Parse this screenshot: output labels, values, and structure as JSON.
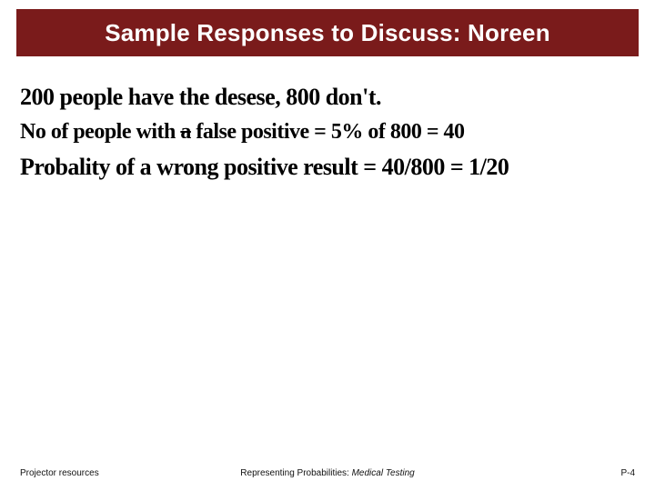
{
  "colors": {
    "titleBarBg": "#7a1b1b",
    "titleText": "#ffffff",
    "bodyBg": "#ffffff",
    "handwriting": "#000000",
    "footerText": "#111111"
  },
  "title": "Sample Responses to Discuss: Noreen",
  "handwriting": {
    "line1_a": "200 people",
    "line1_b": " have the desese, 800 don't.",
    "line2_a": "No of people with ",
    "line2_strike": "a",
    "line2_b": " false positive = 5% of 800 = 40",
    "line3": "Probality of a wrong positive result = 40/800 = 1/20"
  },
  "footer": {
    "left": "Projector resources",
    "center_plain": "Representing Probabilities: ",
    "center_italic": "Medical Testing",
    "right": "P-4"
  },
  "typography": {
    "title_fontsize": 26,
    "title_weight": "bold",
    "hand_fontsize_main": 26,
    "hand_fontsize_mid": 24,
    "footer_fontsize": 10
  },
  "layout": {
    "slide_w": 720,
    "slide_h": 540,
    "titlebar_h": 52
  }
}
